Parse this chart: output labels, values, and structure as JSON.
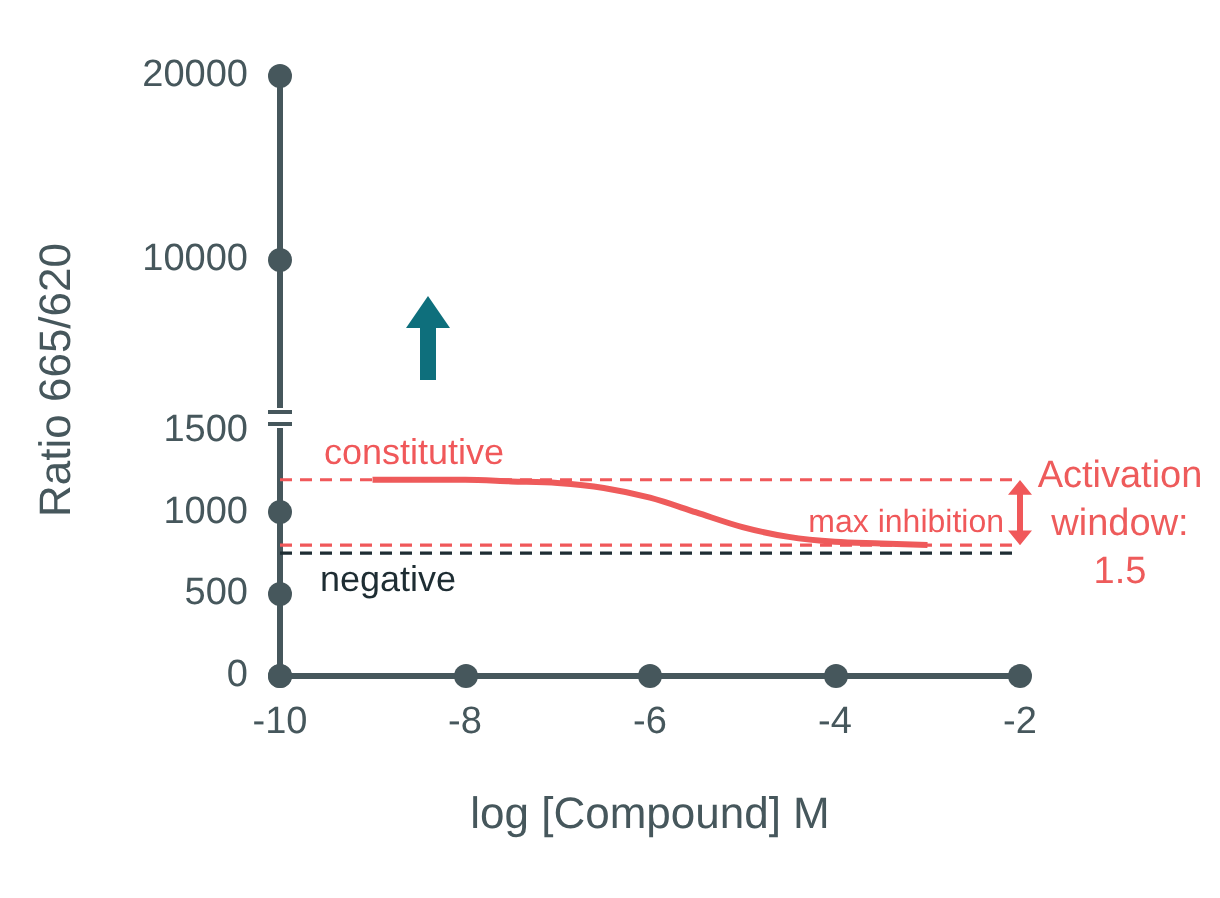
{
  "chart_data": [
    {
      "type": "line",
      "xlim": [
        -10,
        -2
      ],
      "ylim": [
        2000,
        20000
      ],
      "yticks": [
        10000,
        20000
      ],
      "tick_labels": "y",
      "grid": false,
      "legend": false
    },
    {
      "type": "line",
      "ylabel": "Ratio 665/620",
      "xlabel": "log [Compound] M",
      "x": [
        -9,
        -8,
        -7.5,
        -7,
        -6.5,
        -6,
        -5.5,
        -5,
        -4.5,
        -4,
        -3.5,
        -3
      ],
      "series": [
        {
          "color": "#ee5b5b",
          "values": [
            1200,
            1200,
            1190,
            1180,
            1150,
            1090,
            1000,
            910,
            850,
            820,
            810,
            800
          ]
        }
      ],
      "xlim": [
        -10,
        -2
      ],
      "xticks": [
        -10,
        -8,
        -6,
        -4,
        -2
      ],
      "ylim": [
        0,
        1500
      ],
      "yticks": [
        0,
        500,
        1000,
        1500
      ],
      "ref_lines": [
        {
          "axis": "y",
          "value": 1200,
          "label": "constitutive",
          "color": "#f0585a",
          "line_style": "dashed"
        },
        {
          "axis": "y",
          "value": 800,
          "label": "max inhibition",
          "color": "#f0585a",
          "line_style": "dashed"
        },
        {
          "axis": "y",
          "value": 750,
          "label": "negative",
          "color": "#1e2d33",
          "line_style": "dashed"
        }
      ],
      "annotations": [
        "Activation window: 1.5"
      ],
      "grid": false,
      "legend": false,
      "marker": "none",
      "line_style": "solid"
    }
  ]
}
